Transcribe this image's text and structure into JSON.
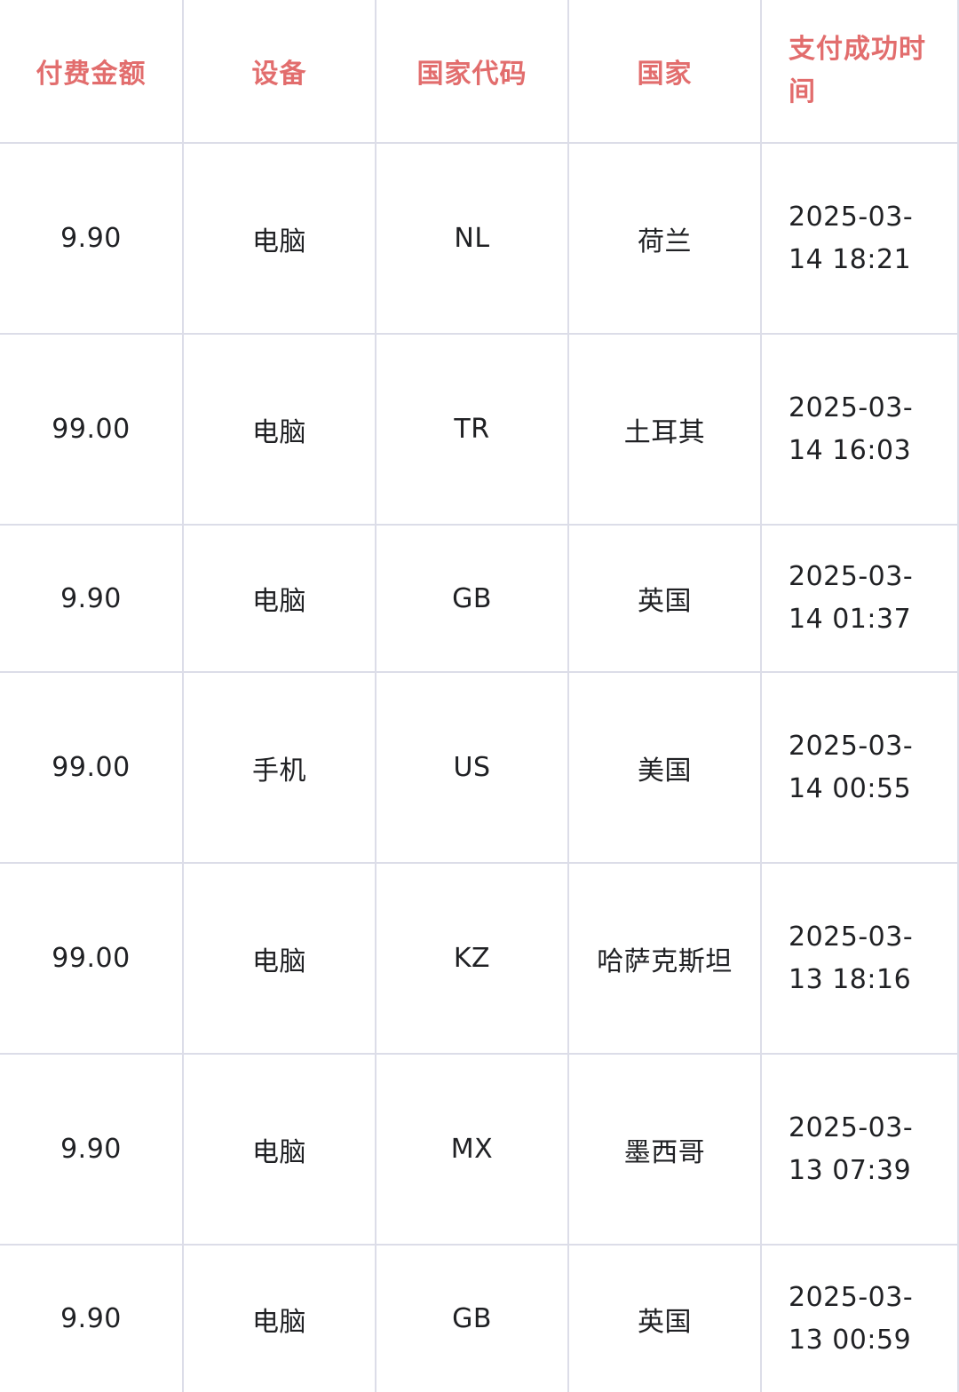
{
  "table": {
    "headers": [
      "付费金额",
      "设备",
      "国家代码",
      "国家",
      "支付成功时间"
    ],
    "rows": [
      {
        "amount": "9.90",
        "device": "电脑",
        "code": "NL",
        "country": "荷兰",
        "time": "2025-03-14 18:21"
      },
      {
        "amount": "99.00",
        "device": "电脑",
        "code": "TR",
        "country": "土耳其",
        "time": "2025-03-14 16:03"
      },
      {
        "amount": "9.90",
        "device": "电脑",
        "code": "GB",
        "country": "英国",
        "time": "2025-03-14 01:37"
      },
      {
        "amount": "99.00",
        "device": "手机",
        "code": "US",
        "country": "美国",
        "time": "2025-03-14 00:55"
      },
      {
        "amount": "99.00",
        "device": "电脑",
        "code": "KZ",
        "country": "哈萨克斯坦",
        "time": "2025-03-13 18:16"
      },
      {
        "amount": "9.90",
        "device": "电脑",
        "code": "MX",
        "country": "墨西哥",
        "time": "2025-03-13 07:39"
      },
      {
        "amount": "9.90",
        "device": "电脑",
        "code": "GB",
        "country": "英国",
        "time": "2025-03-13 00:59"
      }
    ]
  }
}
